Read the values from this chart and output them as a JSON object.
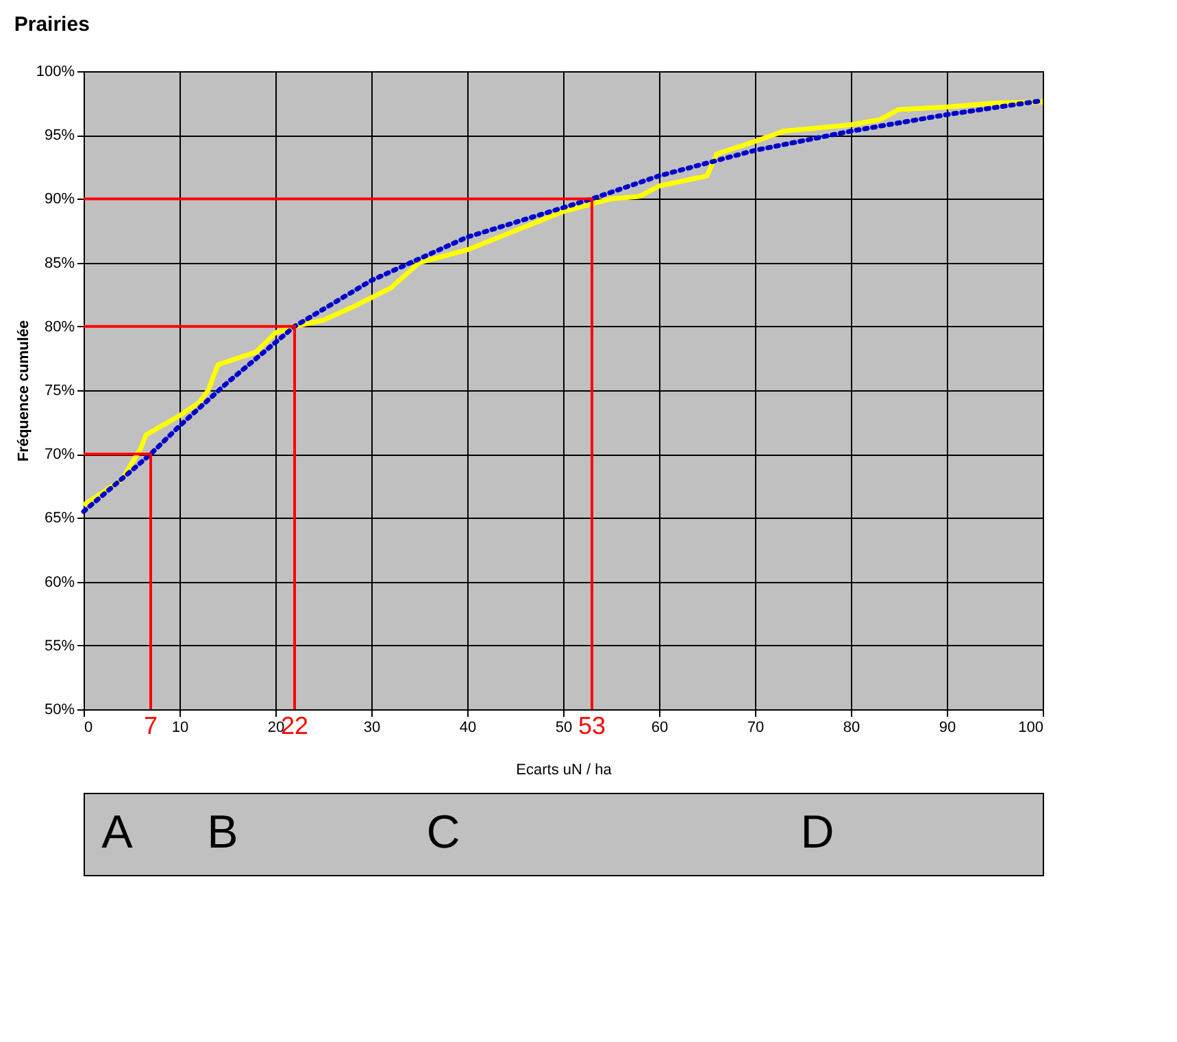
{
  "chart_data": {
    "type": "line",
    "title": "Prairies",
    "xlabel": "Ecarts uN / ha",
    "ylabel": "Fréquence cumulée",
    "xlim": [
      0,
      100
    ],
    "xticks": [
      0,
      10,
      20,
      30,
      40,
      50,
      60,
      70,
      80,
      90,
      100
    ],
    "ylim": [
      50,
      100
    ],
    "yticks": [
      {
        "value": 50,
        "label": "50%"
      },
      {
        "value": 55,
        "label": "55%"
      },
      {
        "value": 60,
        "label": "60%"
      },
      {
        "value": 65,
        "label": "65%"
      },
      {
        "value": 70,
        "label": "70%"
      },
      {
        "value": 75,
        "label": "75%"
      },
      {
        "value": 80,
        "label": "80%"
      },
      {
        "value": 85,
        "label": "85%"
      },
      {
        "value": 90,
        "label": "90%"
      },
      {
        "value": 95,
        "label": "95%"
      },
      {
        "value": 100,
        "label": "100%"
      }
    ],
    "grid": true,
    "marker": "none",
    "series": [
      {
        "color": "#ffff00",
        "line_style": "solid",
        "x": [
          0,
          2,
          4,
          6,
          6.5,
          10,
          12,
          13,
          14,
          18,
          20,
          22,
          25,
          28,
          32,
          35,
          40,
          45,
          50,
          55,
          58,
          60,
          65,
          66,
          70,
          73,
          80,
          83,
          85,
          90,
          95,
          100
        ],
        "values": [
          66,
          67,
          68,
          70.5,
          71.5,
          73,
          74,
          75,
          77,
          78,
          79.5,
          80,
          80.5,
          81.5,
          83,
          85,
          86,
          87.5,
          89,
          90,
          90.2,
          91,
          91.8,
          93.5,
          94.5,
          95.3,
          95.8,
          96.2,
          97,
          97.2,
          97.5,
          97.6
        ]
      },
      {
        "color": "#0000cc",
        "line_style": "dotted",
        "x": [
          0,
          5,
          7,
          10,
          15,
          22,
          30,
          40,
          53,
          60,
          70,
          80,
          90,
          100
        ],
        "values": [
          65.5,
          68.7,
          70,
          72.2,
          75.6,
          80,
          83.6,
          87,
          90,
          91.8,
          93.8,
          95.3,
          96.6,
          97.7
        ]
      },
      {
        "color": "#ff0000",
        "line_style": "solid",
        "x": [
          0,
          7,
          7
        ],
        "values": [
          70,
          70,
          50
        ]
      },
      {
        "color": "#ff0000",
        "line_style": "solid",
        "x": [
          0,
          22,
          22
        ],
        "values": [
          80,
          80,
          50
        ]
      },
      {
        "color": "#ff0000",
        "line_style": "solid",
        "x": [
          0,
          53,
          53
        ],
        "values": [
          90,
          90,
          50
        ]
      }
    ],
    "annotations": [
      {
        "text": "7",
        "x": 7,
        "y": 50
      },
      {
        "text": "22",
        "x": 22,
        "y": 50
      },
      {
        "text": "53",
        "x": 53,
        "y": 50
      },
      "A",
      "B",
      "C",
      "D"
    ]
  }
}
